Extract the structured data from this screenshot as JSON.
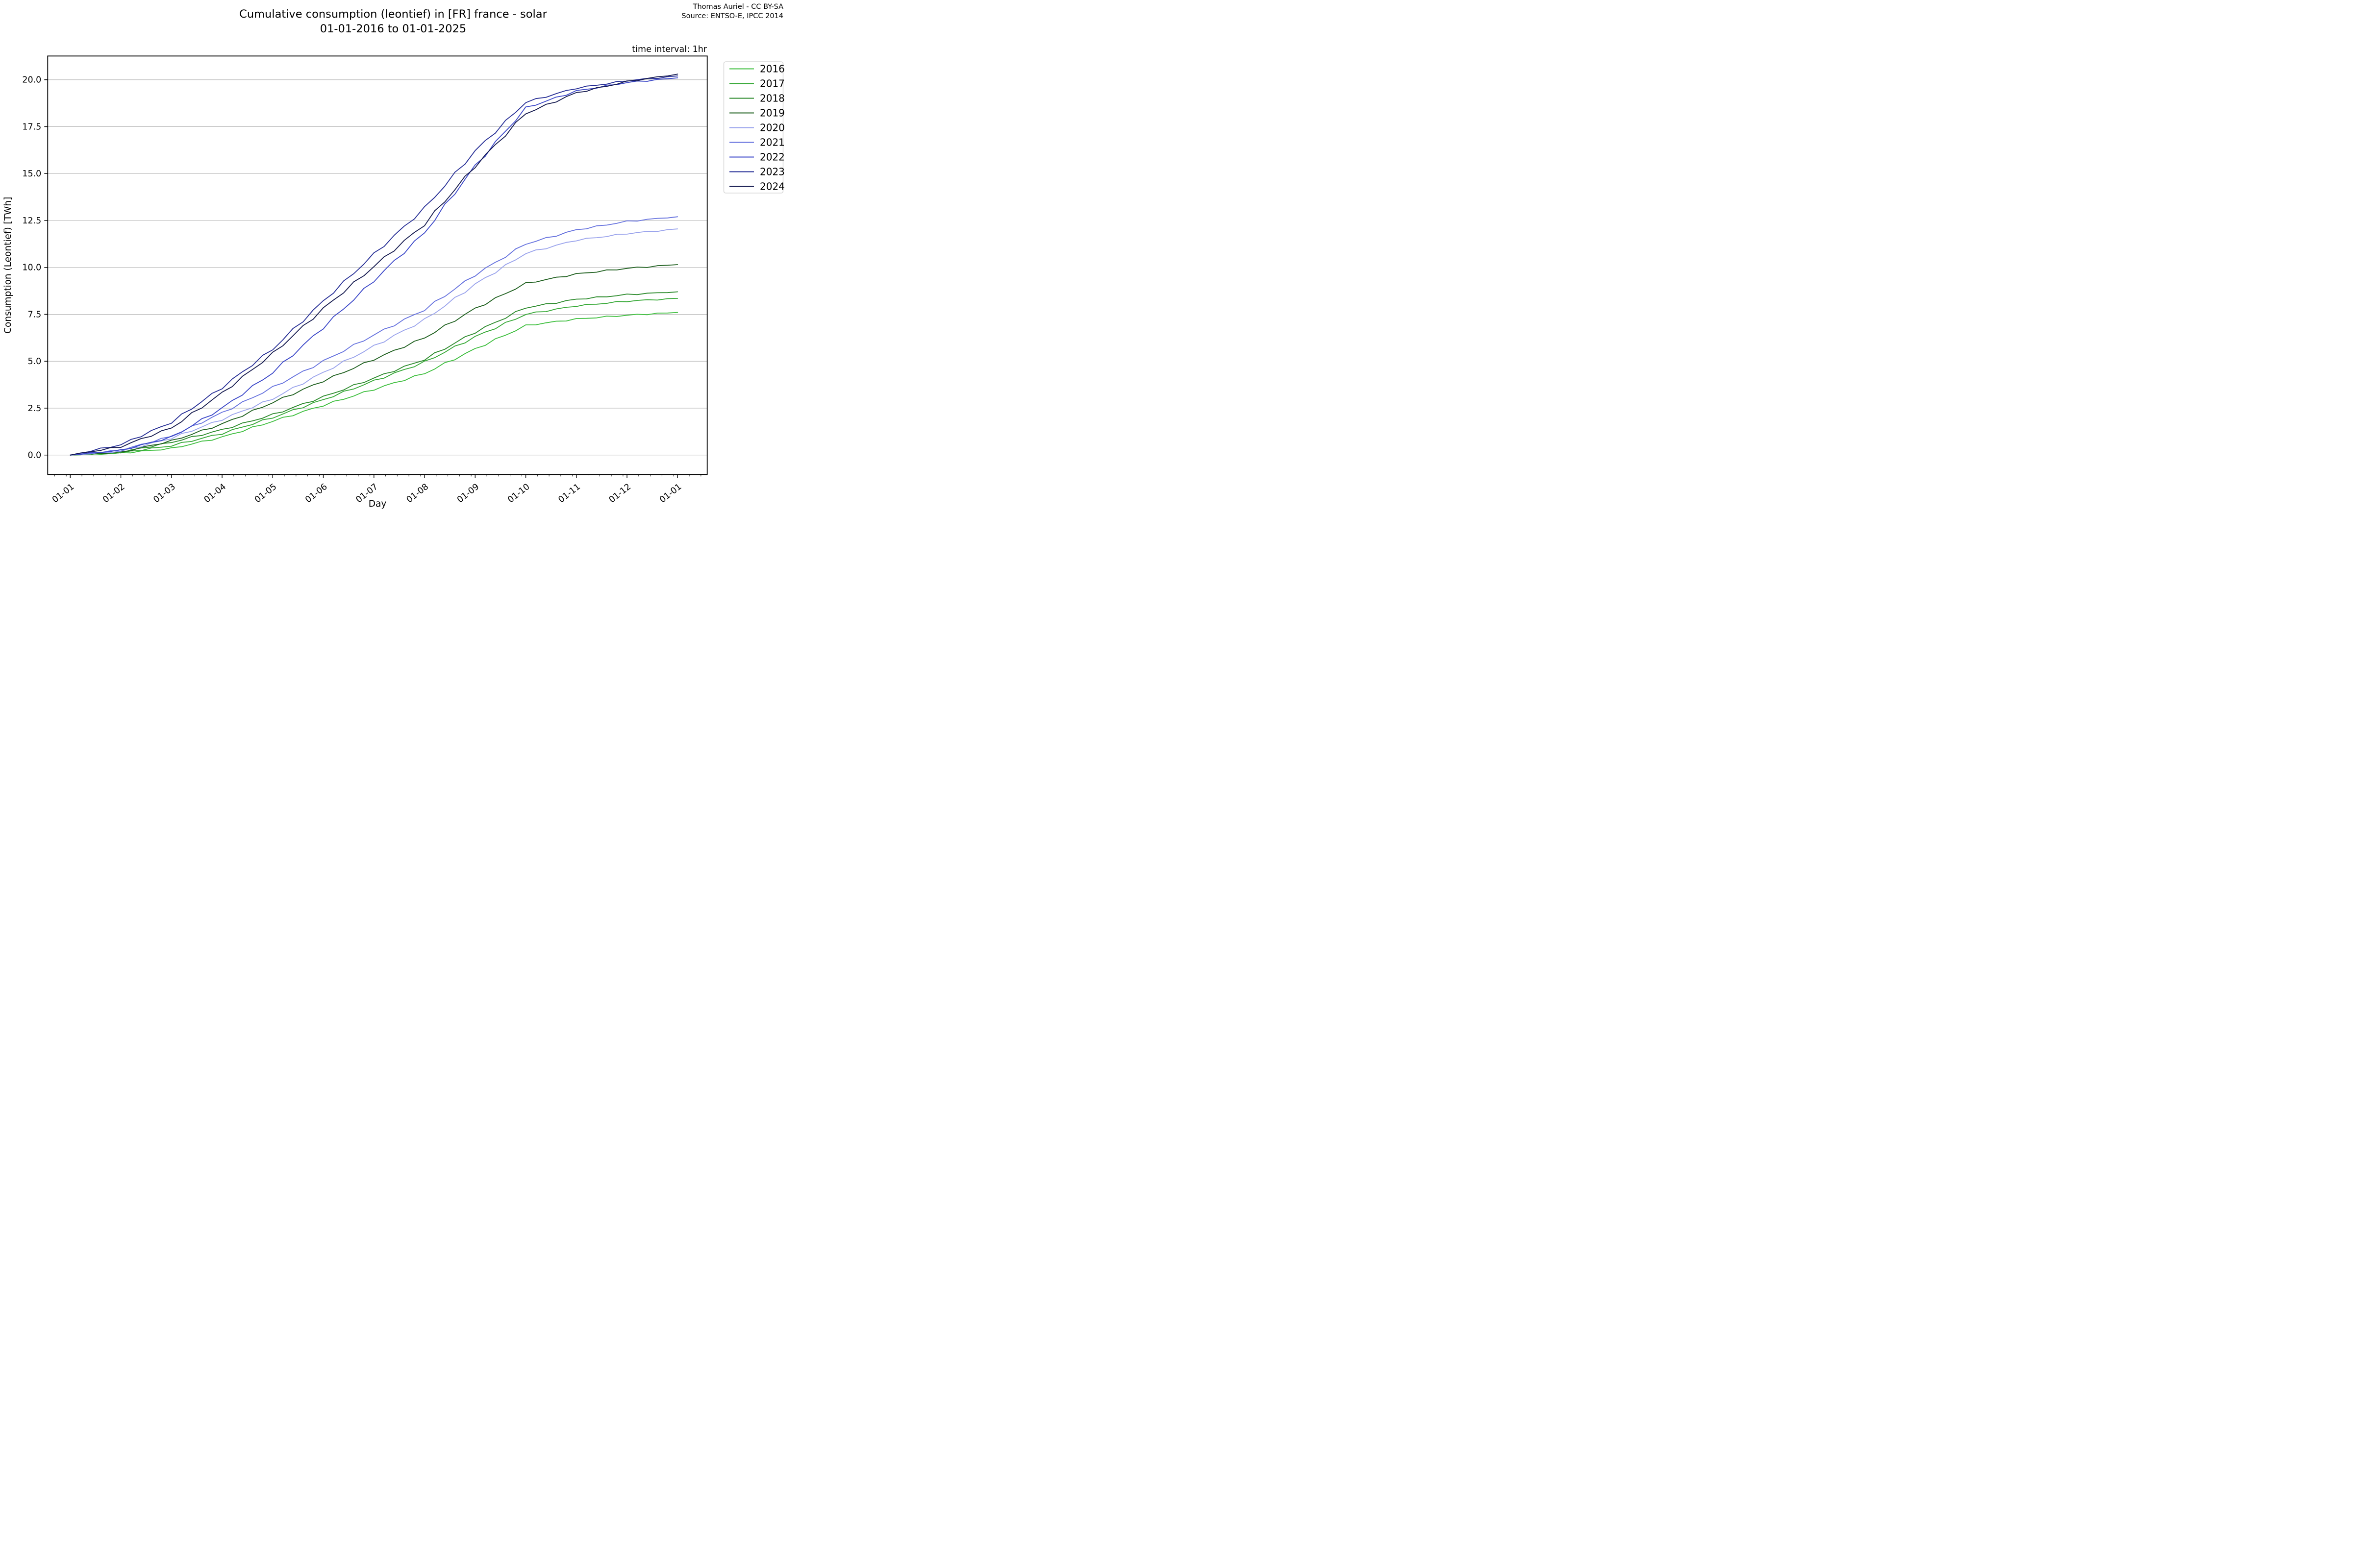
{
  "figure": {
    "title_line1": "Cumulative consumption (leontief) in [FR] france - solar",
    "title_line2": "01-01-2016 to 01-01-2025",
    "credit_line1": "Thomas Auriel - CC BY-SA",
    "credit_line2": "Source: ENTSO-E, IPCC 2014",
    "corner_note": "time interval: 1hr"
  },
  "chart_data": {
    "type": "line",
    "title": "Cumulative consumption (leontief) in [FR] france - solar 01-01-2016 to 01-01-2025",
    "xlabel": "Day",
    "ylabel": "Consumption (Leontief) [TWh]",
    "grid": "horizontal",
    "legend_position": "outside upper right",
    "x_tick_labels": [
      "01-01",
      "01-02",
      "01-03",
      "01-04",
      "01-05",
      "01-06",
      "01-07",
      "01-08",
      "01-09",
      "01-10",
      "01-11",
      "01-12",
      "01-01"
    ],
    "y_ticks": [
      0.0,
      2.5,
      5.0,
      7.5,
      10.0,
      12.5,
      15.0,
      17.5,
      20.0
    ],
    "y_tick_labels": [
      "0.0",
      "2.5",
      "5.0",
      "7.5",
      "10.0",
      "12.5",
      "15.0",
      "17.5",
      "20.0"
    ],
    "xlim_months": [
      -0.45,
      12.59
    ],
    "ylim": [
      -1.05,
      21.3
    ],
    "x_months": [
      0,
      1,
      2,
      3,
      4,
      5,
      6,
      7,
      8,
      9,
      10,
      11,
      12
    ],
    "series": [
      {
        "name": "2016",
        "color": "#3dbe3d",
        "values": [
          0,
          0.1,
          0.35,
          0.95,
          1.8,
          2.65,
          3.5,
          4.35,
          5.65,
          6.9,
          7.25,
          7.45,
          7.6
        ]
      },
      {
        "name": "2017",
        "color": "#35a835",
        "values": [
          0,
          0.12,
          0.5,
          1.15,
          2.0,
          2.95,
          3.95,
          4.95,
          6.3,
          7.5,
          7.95,
          8.2,
          8.35
        ]
      },
      {
        "name": "2018",
        "color": "#2b8a2b",
        "values": [
          0,
          0.15,
          0.68,
          1.35,
          2.15,
          3.1,
          4.1,
          5.1,
          6.55,
          7.85,
          8.3,
          8.55,
          8.7
        ]
      },
      {
        "name": "2019",
        "color": "#1e5f1e",
        "values": [
          0,
          0.15,
          0.75,
          1.65,
          2.8,
          3.95,
          5.1,
          6.25,
          7.8,
          9.15,
          9.65,
          9.95,
          10.15
        ]
      },
      {
        "name": "2020",
        "color": "#9aa3ec",
        "values": [
          0,
          0.2,
          0.9,
          1.9,
          3.0,
          4.4,
          5.8,
          7.2,
          9.1,
          10.75,
          11.45,
          11.8,
          12.05
        ]
      },
      {
        "name": "2021",
        "color": "#6672de",
        "values": [
          0,
          0.25,
          1.0,
          2.25,
          3.6,
          5.0,
          6.4,
          7.75,
          9.6,
          11.25,
          12.0,
          12.45,
          12.7
        ]
      },
      {
        "name": "2022",
        "color": "#3a46c8",
        "values": [
          0,
          0.25,
          0.95,
          2.5,
          4.4,
          6.8,
          9.3,
          11.85,
          15.4,
          18.5,
          19.4,
          19.85,
          20.1
        ]
      },
      {
        "name": "2023",
        "color": "#252d95",
        "values": [
          0,
          0.55,
          1.75,
          3.6,
          5.65,
          8.2,
          10.7,
          13.15,
          16.2,
          18.8,
          19.55,
          19.95,
          20.2
        ]
      },
      {
        "name": "2024",
        "color": "#151a4f",
        "values": [
          0,
          0.45,
          1.45,
          3.3,
          5.4,
          7.8,
          10.05,
          12.3,
          15.4,
          18.2,
          19.3,
          19.9,
          20.3
        ]
      }
    ]
  }
}
